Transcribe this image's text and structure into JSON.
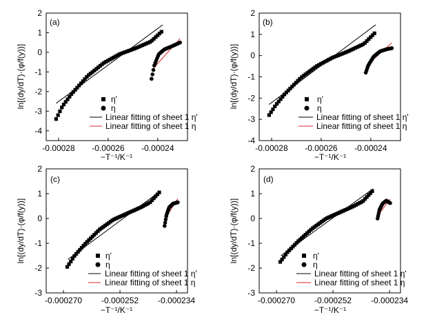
{
  "figure": {
    "x_axis_title": "−T⁻¹/K⁻¹",
    "y_axis_title": "ln[(dy/dT)·(φ/f(y))]",
    "legend": {
      "eta_prime": "η'",
      "eta": "η",
      "fit_eta_prime": "Linear fitting of sheet 1 η'",
      "fit_eta": "Linear fitting of sheet 1 η"
    }
  },
  "chart_data": [
    {
      "id": "a",
      "type": "scatter",
      "panel_label": "(a)",
      "xlim": [
        -0.000285,
        -0.000228
      ],
      "ylim": [
        -4.5,
        2
      ],
      "x_ticks": [
        -0.00028,
        -0.00026,
        -0.00024
      ],
      "x_tick_labels": [
        "-0.00028",
        "-0.00026",
        "-0.00024"
      ],
      "y_ticks": [
        2,
        1,
        0,
        -1,
        -2,
        -3,
        -4
      ],
      "y_tick_labels": [
        "2",
        "1",
        "0",
        "-1",
        "-2",
        "-3",
        "-4"
      ],
      "series": [
        {
          "name": "η'",
          "marker": "square",
          "x_start": -0.000281,
          "x_end": -0.0002385,
          "y_start": -3.4,
          "y_end": 1.05,
          "knots": [
            [
              0,
              -3.4
            ],
            [
              0.06,
              -2.75
            ],
            [
              0.15,
              -2.1
            ],
            [
              0.3,
              -1.2
            ],
            [
              0.45,
              -0.55
            ],
            [
              0.6,
              -0.1
            ],
            [
              0.75,
              0.2
            ],
            [
              0.9,
              0.55
            ],
            [
              1,
              1.05
            ]
          ],
          "count": 56
        },
        {
          "name": "η",
          "marker": "circle",
          "x_start": -0.0002425,
          "x_end": -0.000231,
          "y_start": -1.35,
          "y_end": 0.5,
          "knots": [
            [
              0,
              -1.35
            ],
            [
              0.1,
              -0.65
            ],
            [
              0.25,
              -0.1
            ],
            [
              0.45,
              0.15
            ],
            [
              0.7,
              0.3
            ],
            [
              1,
              0.5
            ]
          ],
          "count": 32
        },
        {
          "name": "Linear fitting of sheet 1 η'",
          "type": "line",
          "color": "#000000",
          "x": [
            -0.000281,
            -0.000238
          ],
          "y": [
            -2.6,
            1.4
          ]
        },
        {
          "name": "Linear fitting of sheet 1 η",
          "type": "line",
          "color": "#d62728",
          "x": [
            -0.000242,
            -0.000231
          ],
          "y": [
            -0.85,
            0.7
          ]
        }
      ]
    },
    {
      "id": "b",
      "type": "scatter",
      "panel_label": "(b)",
      "xlim": [
        -0.000285,
        -0.000228
      ],
      "ylim": [
        -4,
        2
      ],
      "x_ticks": [
        -0.00028,
        -0.00026,
        -0.00024
      ],
      "x_tick_labels": [
        "-0.00028",
        "-0.00026",
        "-0.00024"
      ],
      "y_ticks": [
        2,
        1,
        0,
        -1,
        -2,
        -3,
        -4
      ],
      "y_tick_labels": [
        "2",
        "1",
        "0",
        "-1",
        "-2",
        "-3",
        "-4"
      ],
      "series": [
        {
          "name": "η'",
          "marker": "square",
          "x_start": -0.000281,
          "x_end": -0.0002385,
          "y_start": -2.8,
          "y_end": 1.05,
          "knots": [
            [
              0,
              -2.8
            ],
            [
              0.06,
              -2.35
            ],
            [
              0.15,
              -1.8
            ],
            [
              0.3,
              -1.05
            ],
            [
              0.45,
              -0.5
            ],
            [
              0.6,
              -0.1
            ],
            [
              0.75,
              0.2
            ],
            [
              0.9,
              0.55
            ],
            [
              1,
              1.05
            ]
          ],
          "count": 56
        },
        {
          "name": "η",
          "marker": "circle",
          "x_start": -0.000242,
          "x_end": -0.0002315,
          "y_start": -0.8,
          "y_end": 0.35,
          "knots": [
            [
              0,
              -0.8
            ],
            [
              0.1,
              -0.45
            ],
            [
              0.3,
              -0.05
            ],
            [
              0.55,
              0.2
            ],
            [
              0.8,
              0.3
            ],
            [
              1,
              0.35
            ]
          ],
          "count": 32
        },
        {
          "name": "Linear fitting of sheet 1 η'",
          "type": "line",
          "color": "#000000",
          "x": [
            -0.000281,
            -0.000238
          ],
          "y": [
            -2.3,
            1.45
          ]
        },
        {
          "name": "Linear fitting of sheet 1 η",
          "type": "line",
          "color": "#d62728",
          "x": [
            -0.000242,
            -0.0002315
          ],
          "y": [
            -0.5,
            0.6
          ]
        }
      ]
    },
    {
      "id": "c",
      "type": "scatter",
      "panel_label": "(c)",
      "xlim": [
        -0.0002755,
        -0.0002305
      ],
      "ylim": [
        -3,
        2
      ],
      "x_ticks": [
        -0.00027,
        -0.000252,
        -0.000234
      ],
      "x_tick_labels": [
        "-0.000270",
        "-0.000252",
        "-0.000234"
      ],
      "y_ticks": [
        2,
        1,
        0,
        -1,
        -2,
        -3
      ],
      "y_tick_labels": [
        "2",
        "1",
        "0",
        "-1",
        "-2",
        "-3"
      ],
      "series": [
        {
          "name": "η'",
          "marker": "square",
          "x_start": -0.0002688,
          "x_end": -0.0002395,
          "y_start": -1.95,
          "y_end": 1.05,
          "knots": [
            [
              0,
              -1.95
            ],
            [
              0.08,
              -1.5
            ],
            [
              0.2,
              -1.0
            ],
            [
              0.35,
              -0.45
            ],
            [
              0.5,
              -0.05
            ],
            [
              0.65,
              0.2
            ],
            [
              0.8,
              0.45
            ],
            [
              0.9,
              0.65
            ],
            [
              1,
              1.05
            ]
          ],
          "count": 52
        },
        {
          "name": "η",
          "marker": "circle",
          "x_start": -0.0002378,
          "x_end": -0.0002336,
          "y_start": -0.3,
          "y_end": 0.65,
          "knots": [
            [
              0,
              -0.3
            ],
            [
              0.15,
              0.15
            ],
            [
              0.35,
              0.45
            ],
            [
              0.65,
              0.6
            ],
            [
              1,
              0.65
            ]
          ],
          "count": 24
        },
        {
          "name": "Linear fitting of sheet 1 η'",
          "type": "line",
          "color": "#000000",
          "x": [
            -0.0002686,
            -0.0002392
          ],
          "y": [
            -1.65,
            1.1
          ]
        },
        {
          "name": "Linear fitting of sheet 1 η",
          "type": "line",
          "color": "#d62728",
          "x": [
            -0.0002378,
            -0.0002336
          ],
          "y": [
            -0.05,
            0.8
          ]
        }
      ]
    },
    {
      "id": "d",
      "type": "scatter",
      "panel_label": "(d)",
      "xlim": [
        -0.0002755,
        -0.0002305
      ],
      "ylim": [
        -3,
        2
      ],
      "x_ticks": [
        -0.00027,
        -0.000252,
        -0.000234
      ],
      "x_tick_labels": [
        "-0.000270",
        "-0.000252",
        "-0.000234"
      ],
      "y_ticks": [
        2,
        1,
        0,
        -1,
        -2,
        -3
      ],
      "y_tick_labels": [
        "2",
        "1",
        "0",
        "-1",
        "-2",
        "-3"
      ],
      "series": [
        {
          "name": "η'",
          "marker": "square",
          "x_start": -0.0002688,
          "x_end": -0.0002395,
          "y_start": -1.75,
          "y_end": 1.1,
          "knots": [
            [
              0,
              -1.75
            ],
            [
              0.08,
              -1.35
            ],
            [
              0.2,
              -0.9
            ],
            [
              0.35,
              -0.4
            ],
            [
              0.5,
              0.0
            ],
            [
              0.65,
              0.25
            ],
            [
              0.8,
              0.5
            ],
            [
              0.9,
              0.7
            ],
            [
              1,
              1.1
            ]
          ],
          "count": 52
        },
        {
          "name": "η",
          "marker": "circle",
          "x_start": -0.0002378,
          "x_end": -0.0002338,
          "y_start": 0.0,
          "y_end": 0.62,
          "knots": [
            [
              0,
              0.0
            ],
            [
              0.15,
              0.35
            ],
            [
              0.4,
              0.6
            ],
            [
              0.7,
              0.72
            ],
            [
              1,
              0.62
            ]
          ],
          "count": 24
        },
        {
          "name": "Linear fitting of sheet 1 η'",
          "type": "line",
          "color": "#000000",
          "x": [
            -0.0002686,
            -0.0002392
          ],
          "y": [
            -1.5,
            1.2
          ]
        },
        {
          "name": "Linear fitting of sheet 1 η",
          "type": "line",
          "color": "#d62728",
          "x": [
            -0.0002378,
            -0.0002338
          ],
          "y": [
            0.1,
            0.78
          ]
        }
      ]
    }
  ]
}
